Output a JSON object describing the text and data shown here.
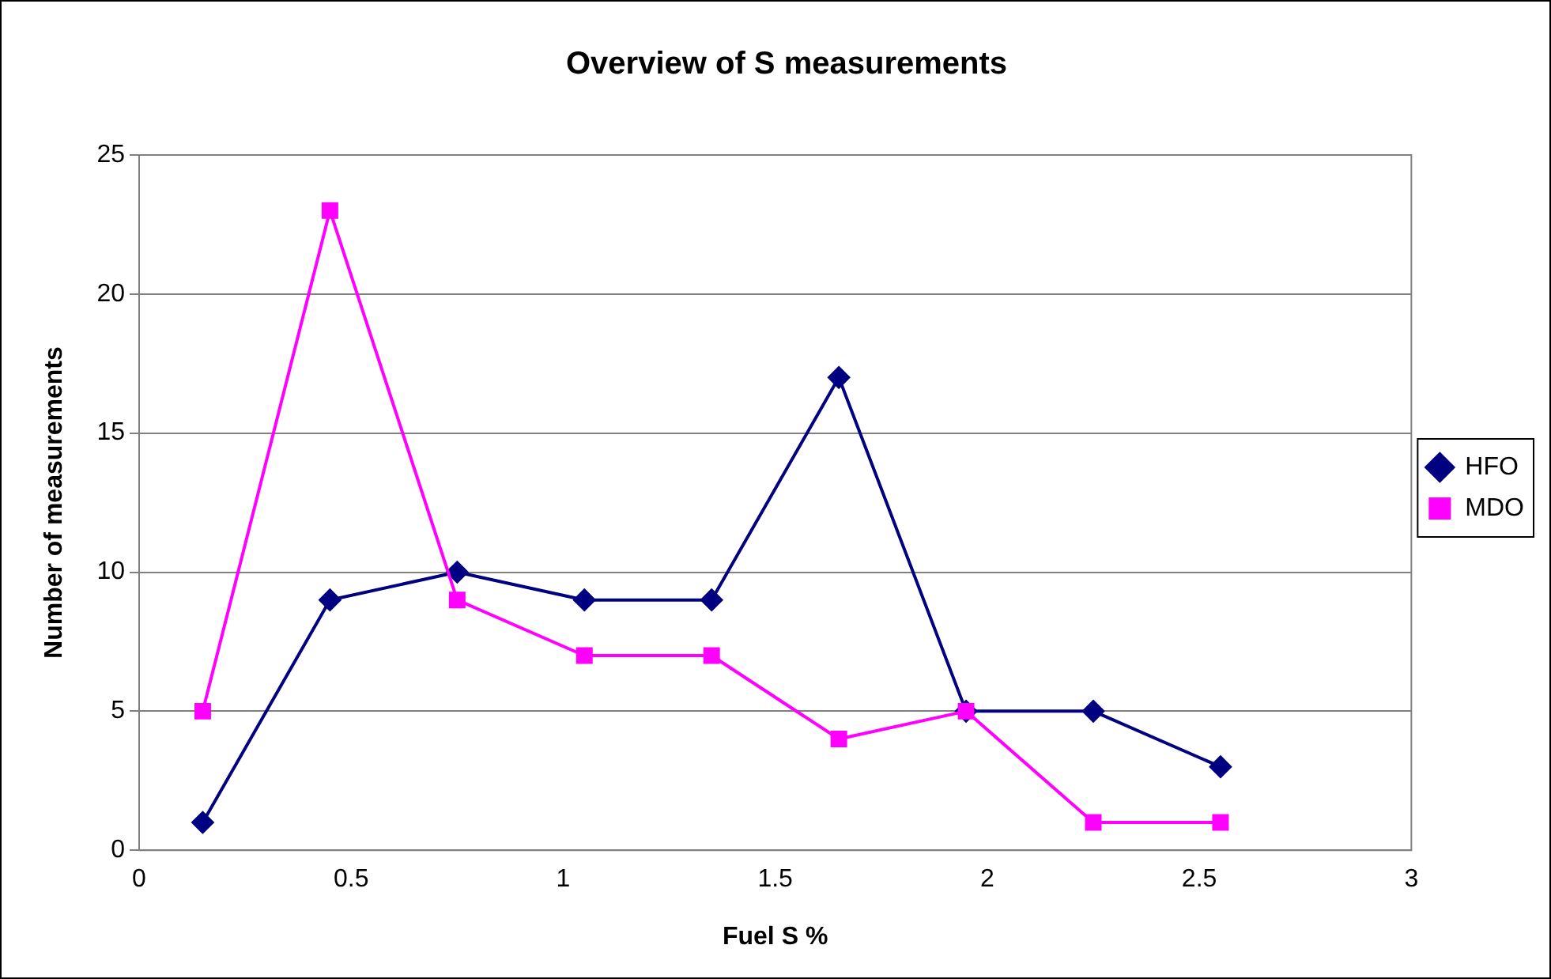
{
  "chart_data": {
    "type": "line",
    "title": "Overview of S measurements",
    "xlabel": "Fuel S %",
    "ylabel": "Number of measurements",
    "x": [
      0.15,
      0.45,
      0.75,
      1.05,
      1.35,
      1.65,
      1.95,
      2.25,
      2.55
    ],
    "series": [
      {
        "name": "HFO",
        "color": "#000080",
        "marker": "diamond",
        "values": [
          1,
          9,
          10,
          9,
          9,
          17,
          5,
          5,
          3
        ]
      },
      {
        "name": "MDO",
        "color": "#ff00ff",
        "marker": "square",
        "values": [
          5,
          23,
          9,
          7,
          7,
          4,
          5,
          1,
          1
        ]
      }
    ],
    "xlim": [
      0,
      3
    ],
    "xticks": [
      0,
      0.5,
      1,
      1.5,
      2,
      2.5,
      3
    ],
    "ylim": [
      0,
      25
    ],
    "yticks": [
      0,
      5,
      10,
      15,
      20,
      25
    ],
    "grid": "y",
    "legend": "right",
    "line_style": "solid"
  }
}
